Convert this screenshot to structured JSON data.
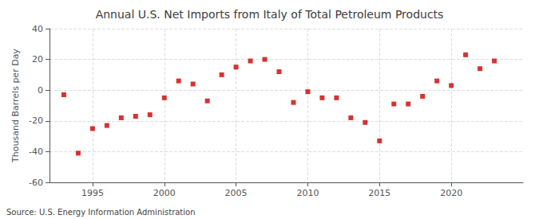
{
  "chart_data": {
    "type": "scatter",
    "title": "Annual U.S. Net Imports from Italy of Total Petroleum Products",
    "ylabel": "Thousand Barrels per Day",
    "annotations": [
      "Source: U.S. Energy Information Administration"
    ],
    "x": [
      1993,
      1994,
      1995,
      1996,
      1997,
      1998,
      1999,
      2000,
      2001,
      2002,
      2003,
      2004,
      2005,
      2006,
      2007,
      2008,
      2009,
      2010,
      2011,
      2012,
      2013,
      2014,
      2015,
      2016,
      2017,
      2018,
      2019,
      2020,
      2021,
      2022,
      2023
    ],
    "values": [
      -3,
      -41,
      -25,
      -23,
      -18,
      -17,
      -16,
      -5,
      6,
      4,
      -7,
      10,
      15,
      19,
      20,
      12,
      -8,
      -1,
      -5,
      -5,
      -18,
      -21,
      -33,
      -9,
      -9,
      -4,
      6,
      3,
      23,
      14,
      19
    ],
    "color": "#cc0000",
    "marker": "square",
    "xlim": [
      1992,
      2025
    ],
    "xticks": [
      1995,
      2000,
      2005,
      2010,
      2015,
      2020
    ],
    "ylim": [
      -60,
      40
    ],
    "yticks": [
      -60,
      -40,
      -20,
      0,
      20,
      40
    ],
    "grid": true
  }
}
